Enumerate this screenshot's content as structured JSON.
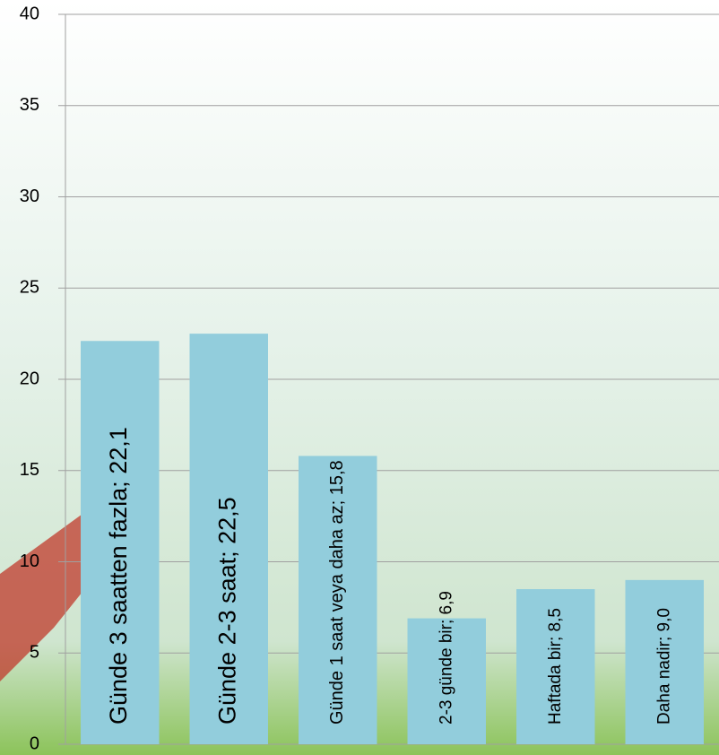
{
  "chart_data": {
    "type": "bar",
    "categories": [
      null,
      null,
      null,
      null,
      null,
      null
    ],
    "values": [
      22.1,
      22.5,
      15.8,
      6.9,
      8.5,
      9.0
    ],
    "value_labels": [
      "Günde 3 saatten fazla; 22,1",
      "Günde 2-3 saat; 22,5",
      "Günde 1 saat veya daha az; 15,8",
      "2-3 günde bir; 6,9",
      "Haftada bir; 8,5",
      "Daha nadir; 9,0"
    ],
    "color": "#92cddc",
    "ylim": [
      0,
      40
    ],
    "yticks": [
      0,
      5,
      10,
      15,
      20,
      25,
      30,
      35,
      40
    ],
    "grid": true
  }
}
